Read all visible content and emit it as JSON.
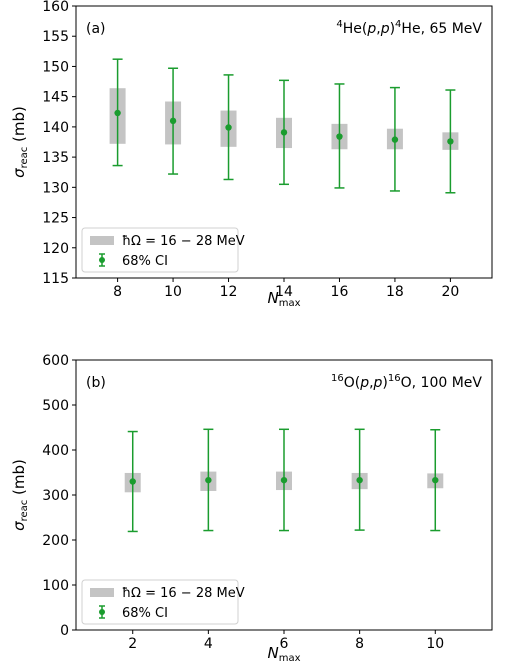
{
  "chart_data": [
    {
      "type": "scatter",
      "panel_label": "(a)",
      "reaction": {
        "prefix": "",
        "sup1": "4",
        "mid": "He(",
        "p1": "p",
        "comma": ",",
        "p2": "p",
        "close": ")",
        "sup2": "4",
        "suffix": "He, 65 MeV"
      },
      "xlabel": {
        "base": "N",
        "sub": "max"
      },
      "ylabel": {
        "base": "σ",
        "sub": "reac",
        "unit": " (mb)"
      },
      "x": [
        8,
        10,
        12,
        14,
        16,
        18,
        20
      ],
      "x_ticks": [
        "8",
        "10",
        "12",
        "14",
        "16",
        "18",
        "20"
      ],
      "xlim": [
        6.5,
        21.5
      ],
      "ylim": [
        115,
        160
      ],
      "y_ticks": [
        "115",
        "120",
        "125",
        "130",
        "135",
        "140",
        "145",
        "150",
        "155",
        "160"
      ],
      "series": [
        {
          "name": "68% CI",
          "y": [
            142.3,
            141.0,
            139.9,
            139.1,
            138.4,
            137.9,
            137.6
          ],
          "err_low": [
            133.6,
            132.2,
            131.3,
            130.5,
            129.9,
            129.4,
            129.1
          ],
          "err_high": [
            151.2,
            149.7,
            148.6,
            147.7,
            147.1,
            146.5,
            146.1
          ]
        }
      ],
      "bands": [
        {
          "name": "ħΩ = 16 − 28 MeV",
          "low": [
            137.2,
            137.1,
            136.7,
            136.5,
            136.3,
            136.3,
            136.2
          ],
          "high": [
            146.4,
            144.2,
            142.7,
            141.5,
            140.5,
            139.7,
            139.1
          ]
        }
      ],
      "legend": {
        "band_label": "ħΩ = 16 − 28 MeV",
        "point_label": "68% CI",
        "position": "lower-left"
      },
      "colors": {
        "point": "#1a9c2e",
        "band": "#c4c4c4"
      },
      "grid": false
    },
    {
      "type": "scatter",
      "panel_label": "(b)",
      "reaction": {
        "prefix": "",
        "sup1": "16",
        "mid": "O(",
        "p1": "p",
        "comma": ",",
        "p2": "p",
        "close": ")",
        "sup2": "16",
        "suffix": "O, 100 MeV"
      },
      "xlabel": {
        "base": "N",
        "sub": "max"
      },
      "ylabel": {
        "base": "σ",
        "sub": "reac",
        "unit": " (mb)"
      },
      "x": [
        2,
        4,
        6,
        8,
        10
      ],
      "x_ticks": [
        "2",
        "4",
        "6",
        "8",
        "10"
      ],
      "xlim": [
        0.5,
        11.5
      ],
      "ylim": [
        0,
        600
      ],
      "y_ticks": [
        "0",
        "100",
        "200",
        "300",
        "400",
        "500",
        "600"
      ],
      "series": [
        {
          "name": "68% CI",
          "y": [
            330,
            333,
            333,
            333,
            333
          ],
          "err_low": [
            219,
            221,
            221,
            222,
            221
          ],
          "err_high": [
            441,
            446,
            446,
            446,
            445
          ]
        }
      ],
      "bands": [
        {
          "name": "ħΩ = 16 − 28 MeV",
          "low": [
            306,
            309,
            311,
            313,
            315
          ],
          "high": [
            349,
            352,
            352,
            349,
            348
          ]
        }
      ],
      "legend": {
        "band_label": "ħΩ = 16 − 28 MeV",
        "point_label": "68% CI",
        "position": "lower-left"
      },
      "colors": {
        "point": "#1a9c2e",
        "band": "#c4c4c4"
      },
      "grid": false
    }
  ]
}
